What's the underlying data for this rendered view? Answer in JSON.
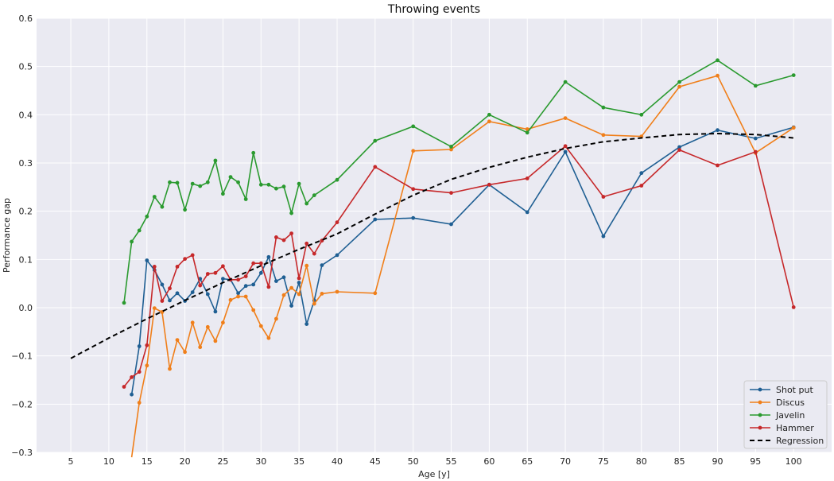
{
  "chart_data": {
    "type": "line",
    "title": "Throwing events",
    "xlabel": "Age [y]",
    "ylabel": "Performance gap",
    "xlim": [
      0.5,
      105
    ],
    "ylim": [
      -0.3,
      0.6
    ],
    "xticks": [
      5,
      10,
      15,
      20,
      25,
      30,
      35,
      40,
      45,
      50,
      55,
      60,
      65,
      70,
      75,
      80,
      85,
      90,
      95,
      100
    ],
    "yticks": [
      -0.3,
      -0.2,
      -0.1,
      0.0,
      0.1,
      0.2,
      0.3,
      0.4,
      0.5,
      0.6
    ],
    "ytick_labels": [
      "−0.3",
      "−0.2",
      "−0.1",
      "0.0",
      "0.1",
      "0.2",
      "0.3",
      "0.4",
      "0.5",
      "0.6"
    ],
    "grid": true,
    "background": "#eaeaf2",
    "legend_position": "lower-right",
    "series": [
      {
        "name": "Shot put",
        "color": "#1f5f93",
        "x": [
          13,
          14,
          15,
          16,
          17,
          18,
          19,
          20,
          21,
          22,
          23,
          24,
          25,
          26,
          27,
          28,
          29,
          30,
          31,
          32,
          33,
          34,
          35,
          36,
          37,
          38,
          40,
          45,
          50,
          55,
          60,
          65,
          70,
          75,
          80,
          85,
          90,
          95,
          100
        ],
        "y": [
          -0.18,
          -0.08,
          0.098,
          0.078,
          0.048,
          0.015,
          0.03,
          0.014,
          0.032,
          0.06,
          0.028,
          -0.008,
          0.06,
          0.058,
          0.03,
          0.045,
          0.048,
          0.072,
          0.105,
          0.055,
          0.063,
          0.004,
          0.052,
          -0.034,
          0.015,
          0.088,
          0.109,
          0.183,
          0.186,
          0.173,
          0.255,
          0.198,
          0.323,
          0.148,
          0.279,
          0.333,
          0.368,
          0.351,
          0.374
        ]
      },
      {
        "name": "Discus",
        "color": "#f07f1a",
        "x": [
          13,
          14,
          15,
          16,
          17,
          18,
          19,
          20,
          21,
          22,
          23,
          24,
          25,
          26,
          27,
          28,
          29,
          30,
          31,
          32,
          33,
          34,
          35,
          36,
          37,
          38,
          40,
          45,
          50,
          55,
          60,
          65,
          70,
          75,
          80,
          85,
          90,
          95,
          100
        ],
        "y": [
          -0.31,
          -0.197,
          -0.12,
          -0.001,
          -0.009,
          -0.127,
          -0.067,
          -0.092,
          -0.031,
          -0.082,
          -0.04,
          -0.069,
          -0.031,
          0.016,
          0.023,
          0.023,
          -0.005,
          -0.038,
          -0.063,
          -0.023,
          0.026,
          0.041,
          0.028,
          0.087,
          0.008,
          0.029,
          0.033,
          0.03,
          0.325,
          0.328,
          0.386,
          0.37,
          0.393,
          0.358,
          0.355,
          0.458,
          0.481,
          0.321,
          0.373
        ]
      },
      {
        "name": "Javelin",
        "color": "#2a9a2f",
        "x": [
          12,
          13,
          14,
          15,
          16,
          17,
          18,
          19,
          20,
          21,
          22,
          23,
          24,
          25,
          26,
          27,
          28,
          29,
          30,
          31,
          32,
          33,
          34,
          35,
          36,
          37,
          40,
          45,
          50,
          55,
          60,
          65,
          70,
          75,
          80,
          85,
          90,
          95,
          100
        ],
        "y": [
          0.01,
          0.137,
          0.16,
          0.189,
          0.23,
          0.209,
          0.26,
          0.259,
          0.203,
          0.257,
          0.252,
          0.26,
          0.305,
          0.236,
          0.271,
          0.26,
          0.225,
          0.321,
          0.255,
          0.255,
          0.247,
          0.251,
          0.196,
          0.257,
          0.216,
          0.233,
          0.265,
          0.346,
          0.376,
          0.334,
          0.4,
          0.363,
          0.468,
          0.415,
          0.4,
          0.468,
          0.513,
          0.46,
          0.482
        ]
      },
      {
        "name": "Hammer",
        "color": "#c6282a",
        "x": [
          12,
          13,
          14,
          15,
          16,
          17,
          18,
          19,
          20,
          21,
          22,
          23,
          24,
          25,
          26,
          27,
          28,
          29,
          30,
          31,
          32,
          33,
          34,
          35,
          36,
          37,
          38,
          40,
          45,
          50,
          55,
          60,
          65,
          70,
          75,
          80,
          85,
          90,
          95,
          100
        ],
        "y": [
          -0.164,
          -0.144,
          -0.133,
          -0.078,
          0.085,
          0.014,
          0.04,
          0.085,
          0.101,
          0.109,
          0.046,
          0.07,
          0.072,
          0.086,
          0.058,
          0.058,
          0.065,
          0.092,
          0.092,
          0.043,
          0.146,
          0.14,
          0.154,
          0.061,
          0.133,
          0.112,
          0.139,
          0.177,
          0.292,
          0.246,
          0.238,
          0.255,
          0.268,
          0.335,
          0.23,
          0.253,
          0.327,
          0.295,
          0.323,
          0.001
        ]
      },
      {
        "name": "Regression",
        "color": "#000000",
        "dashed": true,
        "x": [
          5,
          10,
          15,
          20,
          25,
          30,
          35,
          40,
          45,
          50,
          55,
          60,
          65,
          70,
          75,
          80,
          85,
          90,
          95,
          100
        ],
        "y": [
          -0.105,
          -0.063,
          -0.023,
          0.015,
          0.052,
          0.087,
          0.121,
          0.153,
          0.194,
          0.233,
          0.266,
          0.291,
          0.312,
          0.33,
          0.344,
          0.352,
          0.359,
          0.361,
          0.359,
          0.352
        ]
      }
    ]
  }
}
